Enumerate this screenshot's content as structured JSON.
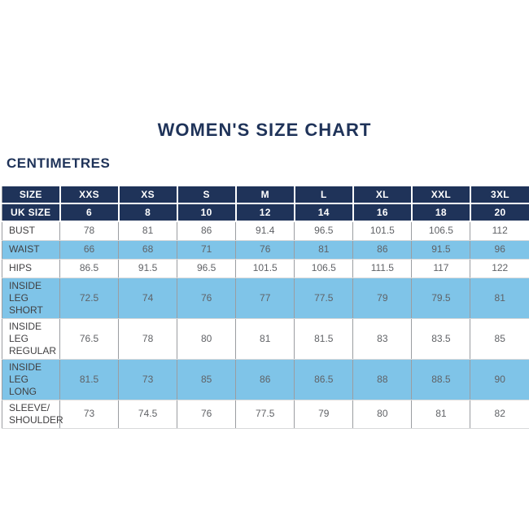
{
  "colors": {
    "navy": "#1f3359",
    "light_blue": "#7fc4e8",
    "header_text": "#ffffff",
    "row_label_text": "#414042",
    "value_text": "#606266",
    "grid_vertical": "#9b9da1",
    "grid_horizontal": "#d8d9da",
    "page_bg": "#ffffff"
  },
  "chart_data": {
    "type": "table",
    "title": "WOMEN'S SIZE CHART",
    "unit_label": "CENTIMETRES",
    "header_rows": [
      {
        "label": "SIZE",
        "values": [
          "XXS",
          "XS",
          "S",
          "M",
          "L",
          "XL",
          "XXL",
          "3XL"
        ]
      },
      {
        "label": "UK SIZE",
        "values": [
          "6",
          "8",
          "10",
          "12",
          "14",
          "16",
          "18",
          "20"
        ]
      }
    ],
    "body_rows": [
      {
        "label": "BUST",
        "shaded": false,
        "values": [
          "78",
          "81",
          "86",
          "91.4",
          "96.5",
          "101.5",
          "106.5",
          "112"
        ]
      },
      {
        "label": "WAIST",
        "shaded": true,
        "values": [
          "66",
          "68",
          "71",
          "76",
          "81",
          "86",
          "91.5",
          "96"
        ]
      },
      {
        "label": "HIPS",
        "shaded": false,
        "values": [
          "86.5",
          "91.5",
          "96.5",
          "101.5",
          "106.5",
          "111.5",
          "117",
          "122"
        ]
      },
      {
        "label": "INSIDE LEG SHORT",
        "shaded": true,
        "values": [
          "72.5",
          "74",
          "76",
          "77",
          "77.5",
          "79",
          "79.5",
          "81"
        ]
      },
      {
        "label": "INSIDE LEG REGULAR",
        "shaded": false,
        "values": [
          "76.5",
          "78",
          "80",
          "81",
          "81.5",
          "83",
          "83.5",
          "85"
        ]
      },
      {
        "label": "INSIDE LEG LONG",
        "shaded": true,
        "values": [
          "81.5",
          "73",
          "85",
          "86",
          "86.5",
          "88",
          "88.5",
          "90"
        ]
      },
      {
        "label": "SLEEVE/ SHOULDER",
        "shaded": false,
        "values": [
          "73",
          "74.5",
          "76",
          "77.5",
          "79",
          "80",
          "81",
          "82"
        ]
      }
    ]
  }
}
